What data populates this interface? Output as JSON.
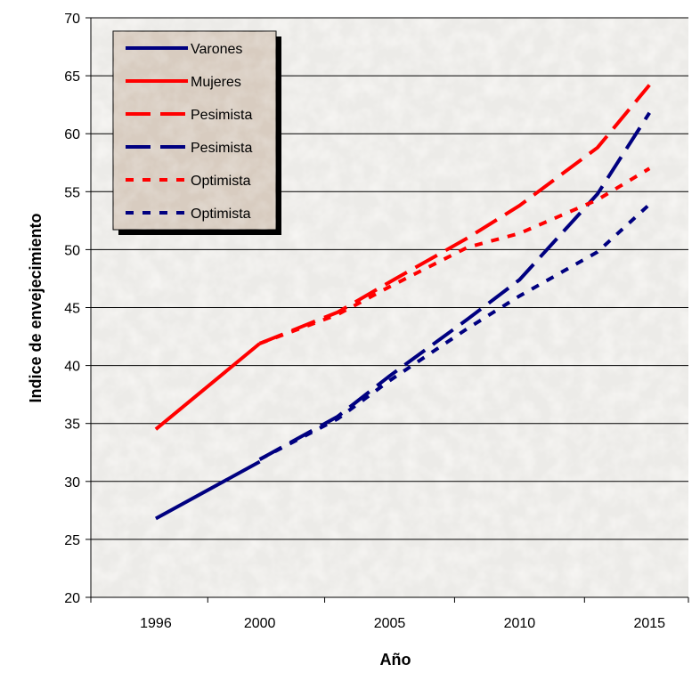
{
  "chart_data": {
    "type": "line",
    "xlabel": "Año",
    "ylabel": "Indice de envejecimiento",
    "ylim": [
      20,
      70
    ],
    "y_ticks": [
      20,
      25,
      30,
      35,
      40,
      45,
      50,
      55,
      60,
      65,
      70
    ],
    "x_ticks": [
      1996,
      2000,
      2005,
      2010,
      2015
    ],
    "xlim": [
      1993.5,
      2016.5
    ],
    "grid": "horizontal",
    "legend_position": "top-left",
    "series": [
      {
        "name": "Varones",
        "color": "#000080",
        "style": "solid",
        "x": [
          1996,
          2000
        ],
        "y": [
          26.8,
          31.7
        ]
      },
      {
        "name": "Mujeres",
        "color": "#ff0000",
        "style": "solid",
        "x": [
          1996,
          2000
        ],
        "y": [
          34.5,
          41.9
        ]
      },
      {
        "name": "Pesimista",
        "color": "#ff0000",
        "style": "dash",
        "x": [
          2000,
          2003,
          2005,
          2008,
          2010,
          2013,
          2015
        ],
        "y": [
          41.9,
          44.6,
          47.2,
          51.0,
          53.8,
          58.8,
          64.2
        ]
      },
      {
        "name": "Pesimista",
        "color": "#000080",
        "style": "dash",
        "x": [
          2000,
          2003,
          2005,
          2008,
          2010,
          2013,
          2015
        ],
        "y": [
          31.9,
          35.6,
          39.1,
          44.0,
          47.4,
          54.8,
          61.8
        ]
      },
      {
        "name": "Optimista",
        "color": "#ff0000",
        "style": "dot",
        "x": [
          2000,
          2003,
          2005,
          2008,
          2010,
          2013,
          2015
        ],
        "y": [
          41.9,
          44.4,
          46.8,
          50.2,
          51.4,
          54.3,
          57.0
        ]
      },
      {
        "name": "Optimista",
        "color": "#000080",
        "style": "dot",
        "x": [
          2000,
          2003,
          2005,
          2008,
          2010,
          2013,
          2015
        ],
        "y": [
          31.9,
          35.4,
          38.7,
          43.2,
          46.0,
          49.8,
          53.9
        ]
      }
    ]
  }
}
